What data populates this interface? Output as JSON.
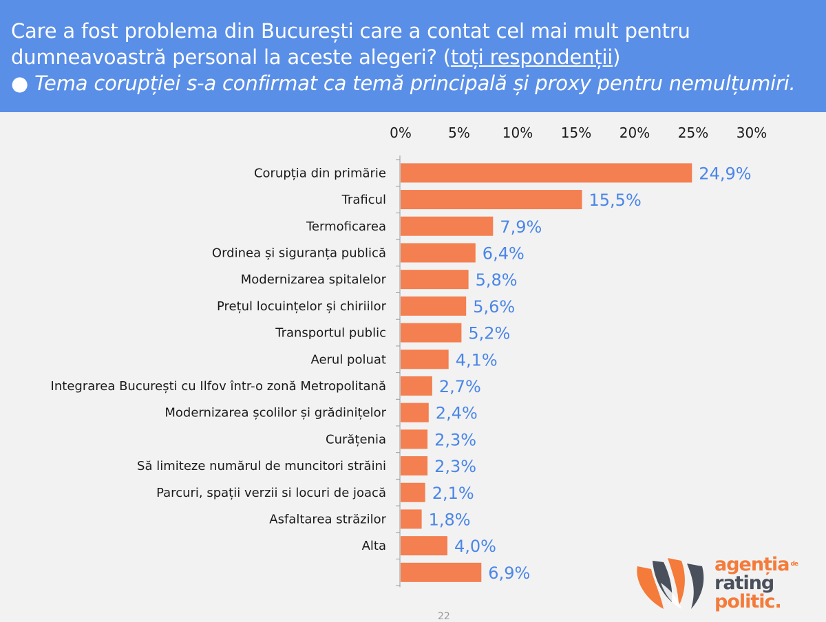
{
  "header": {
    "title_line1": "Care a fost problema din București care a contat cel mai mult pentru",
    "title_line2": "dumneavoastră personal la aceste alegeri? (",
    "title_link": "toți respondenții",
    "title_close": ")",
    "subtitle": "● Tema corupției s-a confirmat ca temă principală și proxy pentru nemulțumiri."
  },
  "chart_data": {
    "type": "bar",
    "orientation": "horizontal",
    "categories": [
      "Corupția din primărie",
      "Traficul",
      "Termoficarea",
      "Ordinea și siguranța publică",
      "Modernizarea spitalelor",
      "Prețul locuințelor și chiriilor",
      "Transportul public",
      "Aerul poluat",
      "Integrarea București cu Ilfov într-o zonă Metropolitană",
      "Modernizarea școlilor și grădinițelor",
      "Curățenia",
      "Să limiteze numărul de muncitori străini",
      "Parcuri, spații verzii si locuri de joacă",
      "Asfaltarea străzilor",
      "Alta",
      ""
    ],
    "values": [
      24.9,
      15.5,
      7.9,
      6.4,
      5.8,
      5.6,
      5.2,
      4.1,
      2.7,
      2.4,
      2.3,
      2.3,
      2.1,
      1.8,
      4.0,
      6.9
    ],
    "value_labels": [
      "24,9%",
      "15,5%",
      "7,9%",
      "6,4%",
      "5,8%",
      "5,6%",
      "5,2%",
      "4,1%",
      "2,7%",
      "2,4%",
      "2,3%",
      "2,3%",
      "2,1%",
      "1,8%",
      "4,0%",
      "6,9%"
    ],
    "x_ticks": [
      "0%",
      "5%",
      "10%",
      "15%",
      "20%",
      "25%",
      "30%"
    ],
    "xlim": [
      0,
      30
    ],
    "x_axis_position": "top",
    "grid": false,
    "bar_color": "#f47f50",
    "label_color": "#4a86e8"
  },
  "logo": {
    "word1": "agenția",
    "word1_sup": "de",
    "word2": "rating",
    "word3": "politic."
  },
  "page_number": "22"
}
